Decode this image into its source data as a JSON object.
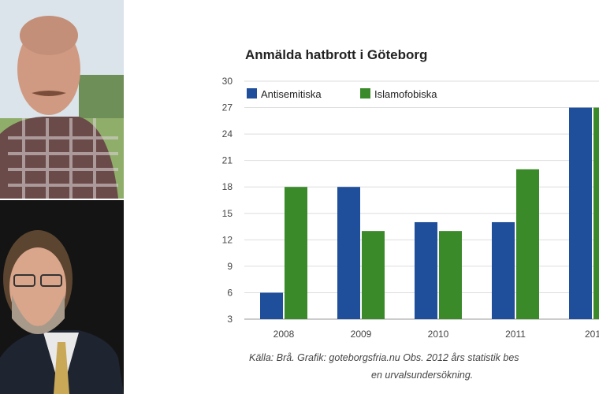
{
  "colors": {
    "antisemitiska": "#1f4e9a",
    "islamofobiska": "#3b8a2a",
    "grid": "#dddddd",
    "axis": "#999999"
  },
  "photos": {
    "top_description": "bald man with mustache in plaid shirt",
    "bottom_description": "bearded man in suit and tie"
  },
  "caption": {
    "line1": "Källa: Brå. Grafik: goteborgsfria.nu Obs. 2012 års statistik bes",
    "line2": "en urvalsundersökning."
  },
  "chart_data": {
    "type": "bar",
    "title": "Anmälda hatbrott i Göteborg",
    "categories": [
      "2008",
      "2009",
      "2010",
      "2011",
      "201"
    ],
    "series": [
      {
        "name": "Antisemitiska",
        "values": [
          6,
          18,
          14,
          14,
          27
        ]
      },
      {
        "name": "Islamofobiska",
        "values": [
          18,
          13,
          13,
          20,
          27
        ]
      }
    ],
    "yticks": [
      "30",
      "27",
      "24",
      "21",
      "18",
      "15",
      "12",
      "9",
      "6",
      "3"
    ],
    "ylim": [
      3,
      30
    ],
    "grid": true,
    "legend_position": "top-left"
  }
}
